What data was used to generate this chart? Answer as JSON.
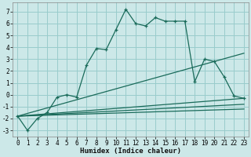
{
  "xlabel": "Humidex (Indice chaleur)",
  "bg_color": "#cce8e8",
  "grid_color": "#99cccc",
  "line_color": "#1a6b5a",
  "xlim": [
    -0.5,
    23.5
  ],
  "ylim": [
    -3.5,
    7.8
  ],
  "yticks": [
    -3,
    -2,
    -1,
    0,
    1,
    2,
    3,
    4,
    5,
    6,
    7
  ],
  "xticks": [
    0,
    1,
    2,
    3,
    4,
    5,
    6,
    7,
    8,
    9,
    10,
    11,
    12,
    13,
    14,
    15,
    16,
    17,
    18,
    19,
    20,
    21,
    22,
    23
  ],
  "line1_x": [
    0,
    1,
    2,
    3,
    4,
    5,
    6,
    7,
    8,
    9,
    10,
    11,
    12,
    13,
    14,
    15,
    16,
    17,
    18,
    19,
    20,
    21,
    22,
    23
  ],
  "line1_y": [
    -1.8,
    -3.0,
    -2.0,
    -1.5,
    -0.2,
    0.0,
    -0.2,
    2.5,
    3.9,
    3.8,
    5.5,
    7.2,
    6.0,
    5.8,
    6.5,
    6.2,
    6.2,
    6.2,
    1.1,
    3.0,
    2.8,
    1.5,
    -0.1,
    -0.3
  ],
  "line2_x": [
    0,
    23
  ],
  "line2_y": [
    -1.8,
    3.5
  ],
  "line3_x": [
    0,
    23
  ],
  "line3_y": [
    -1.8,
    -0.3
  ],
  "line4_x": [
    0,
    23
  ],
  "line4_y": [
    -1.8,
    -0.8
  ],
  "line5_x": [
    0,
    23
  ],
  "line5_y": [
    -1.8,
    -1.2
  ]
}
